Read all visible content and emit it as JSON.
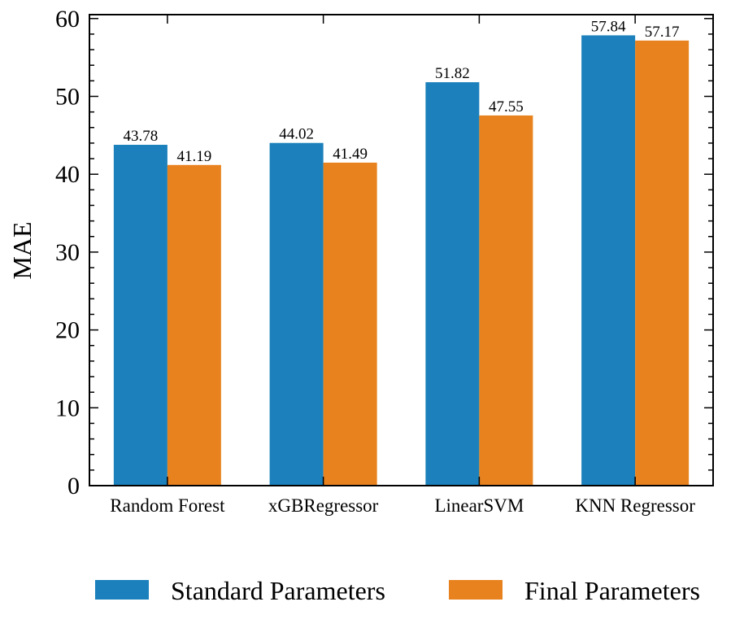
{
  "chart_data": {
    "type": "bar",
    "title": "",
    "xlabel": "",
    "ylabel": "MAE",
    "ylim": [
      0,
      60.5
    ],
    "yticks": [
      0,
      10,
      20,
      30,
      40,
      50,
      60
    ],
    "ytick_labels": [
      "0",
      "10",
      "20",
      "30",
      "40",
      "50",
      "60"
    ],
    "categories": [
      "Random Forest",
      "xGBRegressor",
      "LinearSVM",
      "KNN Regressor"
    ],
    "series": [
      {
        "name": "Standard Parameters",
        "color": "#1b80bb",
        "values": [
          43.78,
          44.02,
          51.82,
          57.84
        ],
        "labels": [
          "43.78",
          "44.02",
          "51.82",
          "57.84"
        ]
      },
      {
        "name": "Final Parameters",
        "color": "#e8821f",
        "values": [
          41.19,
          41.49,
          47.55,
          57.17
        ],
        "labels": [
          "41.19",
          "41.49",
          "47.55",
          "57.17"
        ]
      }
    ],
    "grid": false,
    "legend": "bottom-center"
  }
}
